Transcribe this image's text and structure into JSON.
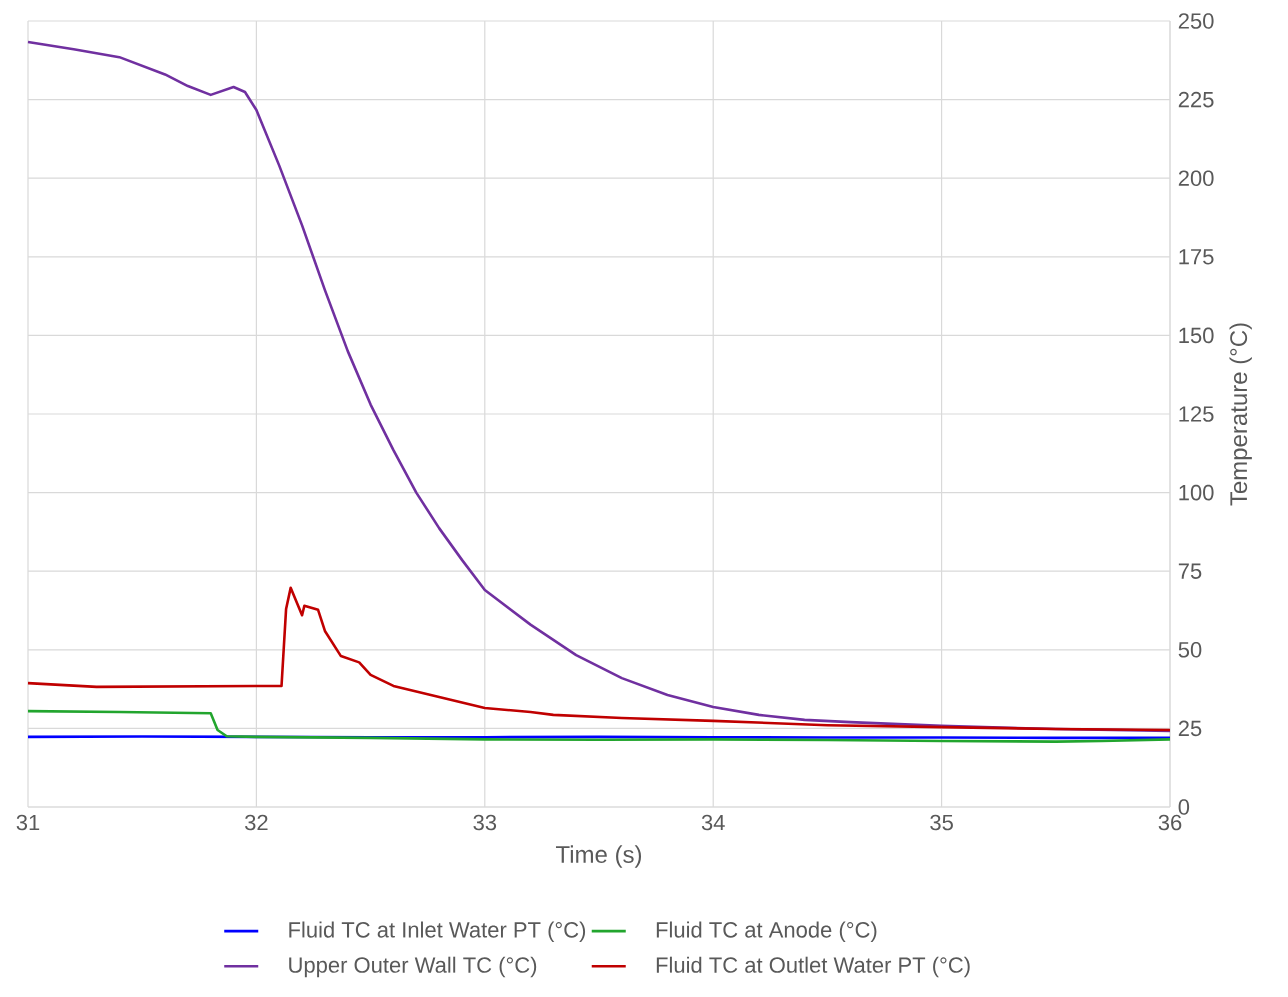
{
  "chart_data": {
    "type": "line",
    "xlabel": "Time (s)",
    "ylabel": "Temperature (°C)",
    "xlim": [
      31,
      36
    ],
    "xticks": [
      31,
      32,
      33,
      34,
      35,
      36
    ],
    "ylim": [
      0,
      250
    ],
    "yticks": [
      0,
      25,
      50,
      75,
      100,
      125,
      150,
      175,
      200,
      225,
      250
    ],
    "grid": true,
    "legend": "bottom",
    "marker": "none",
    "line_style": "solid",
    "series": [
      {
        "name": "Fluid TC at Inlet Water PT (°C)",
        "color": "#0000ff",
        "x": [
          31,
          31.5,
          32.5,
          33,
          33.5,
          34,
          34.5,
          35,
          35.5,
          36
        ],
        "values": [
          22.3,
          22.4,
          22.2,
          22.2,
          22.3,
          22.2,
          22.1,
          22.1,
          22,
          22
        ]
      },
      {
        "name": "Fluid TC at Anode (°C)",
        "color": "#22a52e",
        "x": [
          31,
          31.4,
          31.8,
          31.83,
          31.87,
          32,
          32.5,
          33,
          33.5,
          34,
          34.5,
          35,
          35.5,
          35.7,
          36
        ],
        "values": [
          30.5,
          30.2,
          29.8,
          24.5,
          22.5,
          22.3,
          22,
          21.5,
          21.4,
          21.5,
          21.3,
          21,
          20.8,
          21,
          21.5
        ]
      },
      {
        "name": "Upper Outer Wall TC (°C)",
        "color": "#7030a0",
        "x": [
          31,
          31.2,
          31.4,
          31.6,
          31.7,
          31.8,
          31.9,
          31.95,
          32,
          32.1,
          32.2,
          32.3,
          32.4,
          32.5,
          32.6,
          32.7,
          32.8,
          32.9,
          33,
          33.2,
          33.4,
          33.6,
          33.8,
          34,
          34.2,
          34.4,
          34.6,
          35,
          35.5,
          36
        ],
        "values": [
          243.3,
          241,
          238.5,
          233,
          229.3,
          226.5,
          229,
          227.4,
          221.7,
          204,
          185,
          164.4,
          145,
          128,
          113.5,
          100,
          88.7,
          78.6,
          69,
          58,
          48.3,
          41,
          35.6,
          31.8,
          29.3,
          27.7,
          27,
          25.8,
          24.8,
          24.2
        ]
      },
      {
        "name": "Fluid TC at Outlet Water PT (°C)",
        "color": "#c00000",
        "x": [
          31,
          31.3,
          32,
          32.11,
          32.13,
          32.15,
          32.2,
          32.21,
          32.27,
          32.3,
          32.37,
          32.45,
          32.5,
          32.6,
          32.8,
          33,
          33.2,
          33.3,
          33.6,
          34,
          34.5,
          35,
          35.5,
          36
        ],
        "values": [
          39.4,
          38.2,
          38.5,
          38.5,
          63,
          69.7,
          61,
          64,
          62.7,
          56,
          48,
          46,
          42,
          38.5,
          35,
          31.5,
          30.2,
          29.3,
          28.3,
          27.4,
          26,
          25.4,
          24.8,
          24.5
        ]
      }
    ]
  }
}
